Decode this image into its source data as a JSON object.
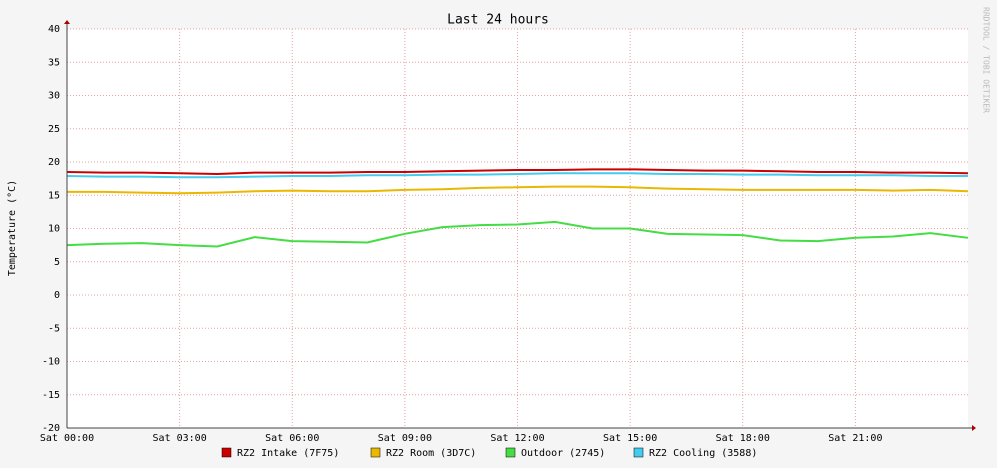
{
  "chart_data": {
    "type": "line",
    "title": "Last 24 hours",
    "y_label": "Temperature (°C)",
    "watermark": "RRDTOOL / TOBI OETIKER",
    "x": [
      0,
      1,
      2,
      3,
      4,
      5,
      6,
      7,
      8,
      9,
      10,
      11,
      12,
      13,
      14,
      15,
      16,
      17,
      18,
      19,
      20,
      21,
      22,
      23,
      24
    ],
    "xlim": [
      0,
      24
    ],
    "xticks": [
      {
        "value": 0,
        "label": "Sat 00:00"
      },
      {
        "value": 3,
        "label": "Sat 03:00"
      },
      {
        "value": 6,
        "label": "Sat 06:00"
      },
      {
        "value": 9,
        "label": "Sat 09:00"
      },
      {
        "value": 12,
        "label": "Sat 12:00"
      },
      {
        "value": 15,
        "label": "Sat 15:00"
      },
      {
        "value": 18,
        "label": "Sat 18:00"
      },
      {
        "value": 21,
        "label": "Sat 21:00"
      }
    ],
    "ylim": [
      -20,
      40
    ],
    "yticks": [
      -20,
      -15,
      -10,
      -5,
      0,
      5,
      10,
      15,
      20,
      25,
      30,
      35,
      40
    ],
    "grid": true,
    "series": [
      {
        "name": "RZ2 Intake (7F75)",
        "color": "#cc0000",
        "values": [
          18.5,
          18.4,
          18.4,
          18.3,
          18.2,
          18.4,
          18.4,
          18.4,
          18.5,
          18.5,
          18.6,
          18.7,
          18.8,
          18.8,
          18.9,
          18.9,
          18.8,
          18.7,
          18.7,
          18.6,
          18.5,
          18.5,
          18.4,
          18.4,
          18.3
        ]
      },
      {
        "name": "RZ2 Room (3D7C)",
        "color": "#eab800",
        "values": [
          15.5,
          15.5,
          15.4,
          15.3,
          15.4,
          15.6,
          15.7,
          15.6,
          15.6,
          15.8,
          15.9,
          16.1,
          16.2,
          16.3,
          16.3,
          16.2,
          16.0,
          15.9,
          15.8,
          15.8,
          15.8,
          15.8,
          15.7,
          15.8,
          15.6
        ]
      },
      {
        "name": "Outdoor (2745)",
        "color": "#44dd44",
        "values": [
          7.5,
          7.7,
          7.8,
          7.5,
          7.3,
          8.7,
          8.1,
          8.0,
          7.9,
          9.2,
          10.2,
          10.5,
          10.6,
          11.0,
          10.0,
          10.0,
          9.2,
          9.1,
          9.0,
          8.2,
          8.1,
          8.6,
          8.8,
          9.3,
          8.6
        ]
      },
      {
        "name": "RZ2 Cooling (3588)",
        "color": "#44ccee",
        "values": [
          17.9,
          17.8,
          17.8,
          17.7,
          17.7,
          17.8,
          17.9,
          17.9,
          18.0,
          18.0,
          18.1,
          18.1,
          18.2,
          18.3,
          18.3,
          18.3,
          18.2,
          18.2,
          18.1,
          18.1,
          18.0,
          18.0,
          18.0,
          17.9,
          17.9
        ]
      }
    ]
  }
}
